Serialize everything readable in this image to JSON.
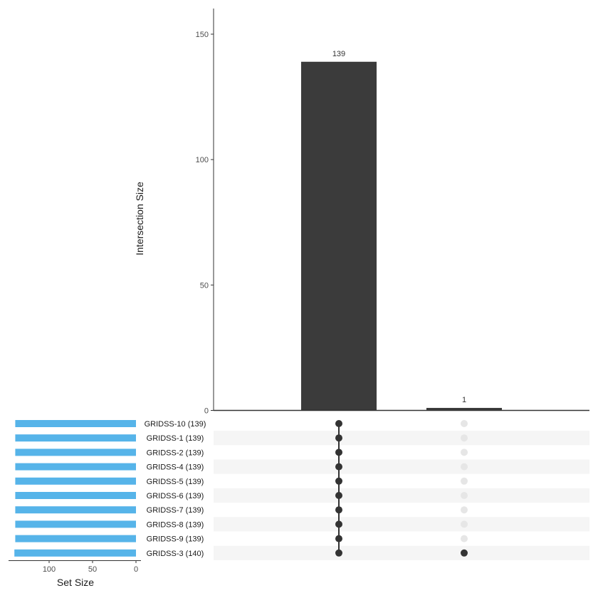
{
  "chart_data": {
    "type": "upset",
    "intersection_axis": {
      "title": "Intersection Size",
      "ylim": [
        0,
        160
      ],
      "ticks": [
        0,
        50,
        100,
        150
      ]
    },
    "intersections": [
      {
        "size": 139,
        "label": "139",
        "members": [
          "GRIDSS-10",
          "GRIDSS-1",
          "GRIDSS-2",
          "GRIDSS-4",
          "GRIDSS-5",
          "GRIDSS-6",
          "GRIDSS-7",
          "GRIDSS-8",
          "GRIDSS-9",
          "GRIDSS-3"
        ]
      },
      {
        "size": 1,
        "label": "1",
        "members": [
          "GRIDSS-3"
        ]
      }
    ],
    "sets": [
      {
        "name": "GRIDSS-10",
        "size": 139,
        "label": "GRIDSS-10 (139)"
      },
      {
        "name": "GRIDSS-1",
        "size": 139,
        "label": "GRIDSS-1 (139)"
      },
      {
        "name": "GRIDSS-2",
        "size": 139,
        "label": "GRIDSS-2 (139)"
      },
      {
        "name": "GRIDSS-4",
        "size": 139,
        "label": "GRIDSS-4 (139)"
      },
      {
        "name": "GRIDSS-5",
        "size": 139,
        "label": "GRIDSS-5 (139)"
      },
      {
        "name": "GRIDSS-6",
        "size": 139,
        "label": "GRIDSS-6 (139)"
      },
      {
        "name": "GRIDSS-7",
        "size": 139,
        "label": "GRIDSS-7 (139)"
      },
      {
        "name": "GRIDSS-8",
        "size": 139,
        "label": "GRIDSS-8 (139)"
      },
      {
        "name": "GRIDSS-9",
        "size": 139,
        "label": "GRIDSS-9 (139)"
      },
      {
        "name": "GRIDSS-3",
        "size": 140,
        "label": "GRIDSS-3 (140)"
      }
    ],
    "set_size_axis": {
      "title": "Set Size",
      "ticks": [
        100,
        50,
        0
      ],
      "direction": "reversed"
    },
    "colors": {
      "bar": "#3b3b3b",
      "set_bar": "#56b4e9",
      "dot_active": "#333333",
      "dot_inactive": "#e6e6e6",
      "stripe": "#f5f5f5"
    },
    "grid": false
  }
}
